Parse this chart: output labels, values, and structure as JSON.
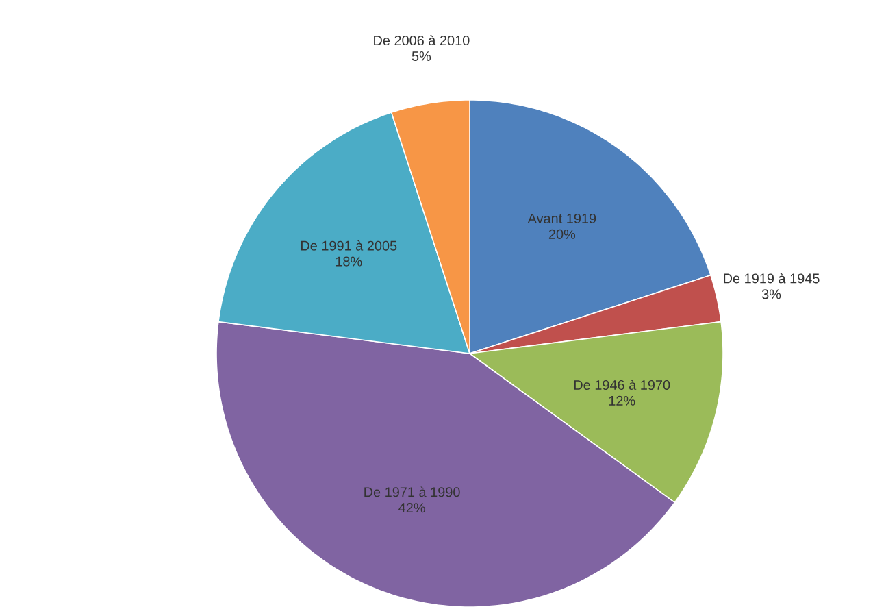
{
  "chart_data": {
    "type": "pie",
    "categories": [
      "Avant 1919",
      "De 1919 à 1945",
      "De 1946 à 1970",
      "De 1971 à 1990",
      "De 1991 à 2005",
      "De 2006 à 2010"
    ],
    "values": [
      20,
      3,
      12,
      42,
      18,
      5
    ],
    "value_labels": [
      "20%",
      "3%",
      "12%",
      "42%",
      "18%",
      "5%"
    ],
    "colors": [
      "#4f81bd",
      "#c0504d",
      "#9bbb59",
      "#8064a2",
      "#4bacc6",
      "#f79646"
    ]
  }
}
